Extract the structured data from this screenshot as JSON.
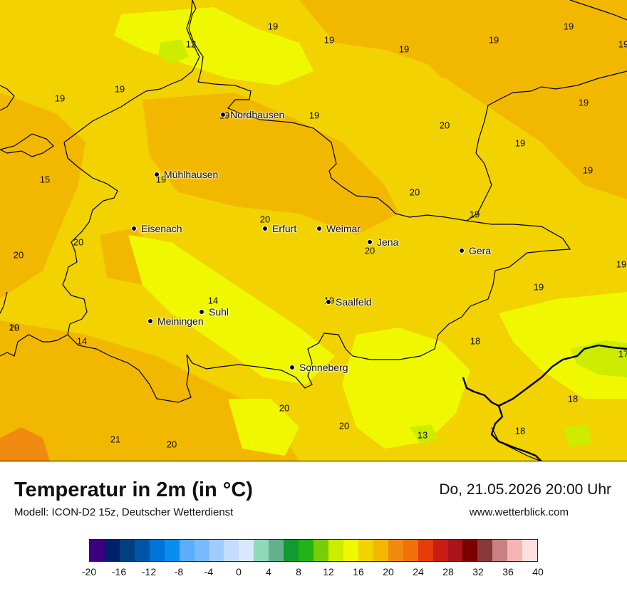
{
  "map": {
    "value_labels": [
      {
        "text": "19"
      },
      {
        "text": "19"
      },
      {
        "text": "19"
      },
      {
        "text": "19"
      },
      {
        "text": "19"
      },
      {
        "text": "19"
      },
      {
        "text": "12"
      },
      {
        "text": "19"
      },
      {
        "text": "19"
      },
      {
        "text": "19"
      },
      {
        "text": "19"
      },
      {
        "text": "19"
      },
      {
        "text": "20"
      },
      {
        "text": "19"
      },
      {
        "text": "15"
      },
      {
        "text": "19"
      },
      {
        "text": "19"
      },
      {
        "text": "20"
      },
      {
        "text": "20"
      },
      {
        "text": "20"
      },
      {
        "text": "20"
      },
      {
        "text": "19"
      },
      {
        "text": "20"
      },
      {
        "text": "19"
      },
      {
        "text": "19"
      },
      {
        "text": "14"
      },
      {
        "text": "20"
      },
      {
        "text": "14"
      },
      {
        "text": "19"
      },
      {
        "text": "18"
      },
      {
        "text": "17"
      },
      {
        "text": "18"
      },
      {
        "text": "20"
      },
      {
        "text": "20"
      },
      {
        "text": "13"
      },
      {
        "text": "18"
      },
      {
        "text": "21"
      },
      {
        "text": "20"
      },
      {
        "text": "19"
      }
    ],
    "cities": [
      {
        "name": "Nordhausen"
      },
      {
        "name": "Mühlhausen"
      },
      {
        "name": "Eisenach"
      },
      {
        "name": "Erfurt"
      },
      {
        "name": "Weimar"
      },
      {
        "name": "Jena"
      },
      {
        "name": "Gera"
      },
      {
        "name": "Suhl"
      },
      {
        "name": "Saalfeld"
      },
      {
        "name": "Meiningen"
      },
      {
        "name": "Sonneberg"
      }
    ]
  },
  "footer": {
    "title": "Temperatur in 2m (in °C)",
    "subtitle": "Modell: ICON-D2 15z, Deutscher Wetterdienst",
    "datetime": "Do, 21.05.2026 20:00 Uhr",
    "website": "www.wetterblick.com"
  },
  "legend": {
    "colors": [
      "#3a007f",
      "#001f6b",
      "#003f80",
      "#0054a6",
      "#0073d9",
      "#0a8cf0",
      "#5aaefc",
      "#78bafc",
      "#a0ccfc",
      "#c4dcfc",
      "#d8e8fc",
      "#90d8b8",
      "#64b08c",
      "#109a30",
      "#1fb314",
      "#78cc08",
      "#ccec00",
      "#f0f800",
      "#f2d200",
      "#f2b800",
      "#f08a10",
      "#f0700a",
      "#e63c0a",
      "#c81c14",
      "#a81418",
      "#7a0000",
      "#883838",
      "#c88080",
      "#f4b4b4",
      "#fce0e0"
    ],
    "ticks": [
      "-20",
      "-16",
      "-12",
      "-8",
      "-4",
      "0",
      "4",
      "8",
      "12",
      "16",
      "20",
      "24",
      "28",
      "32",
      "36",
      "40"
    ]
  }
}
